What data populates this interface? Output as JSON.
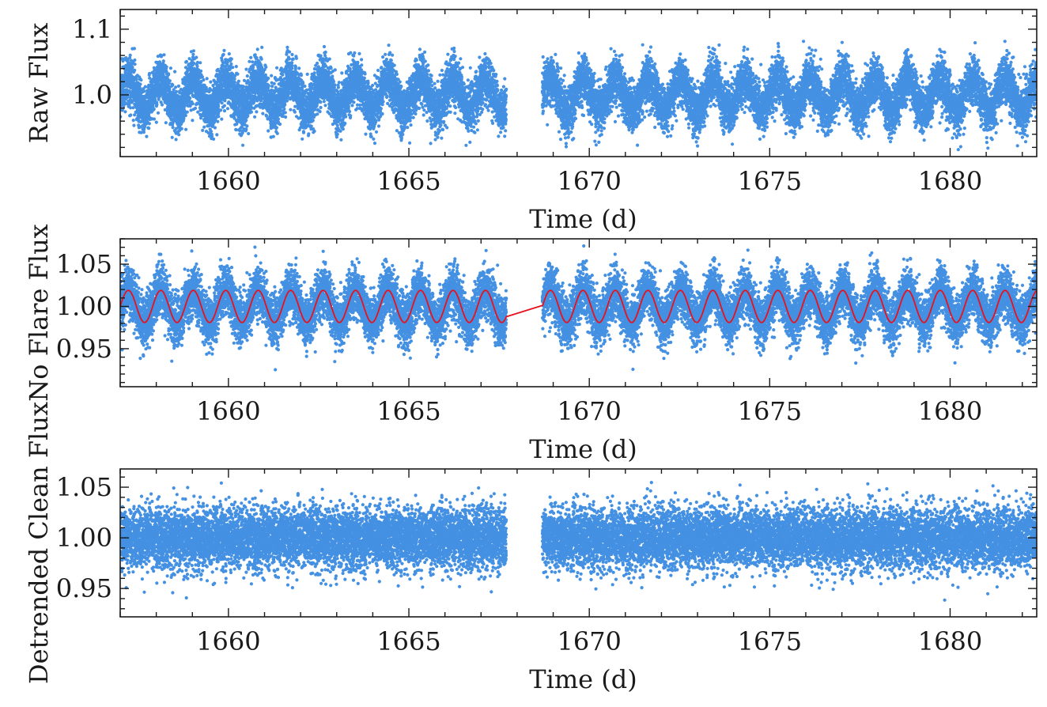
{
  "colors": {
    "points": "#4490e2",
    "model": "#e8121c",
    "axes": "#1a1a1a"
  },
  "chart_data": [
    {
      "type": "scatter",
      "xlabel": "Time (d)",
      "ylabel": "Raw Flux",
      "xlim": [
        1657.0,
        1682.4
      ],
      "ylim": [
        0.906,
        1.13
      ],
      "x_ticks": [
        1660,
        1665,
        1670,
        1675,
        1680
      ],
      "y_ticks": [
        1.0,
        1.1
      ],
      "y_tick_labels": [
        "1.0",
        "1.1"
      ],
      "x_minor_step": 1,
      "y_minor_step": 0.02,
      "series": [
        {
          "kind": "points",
          "segments": [
            [
              1657.0,
              1667.7
            ],
            [
              1668.7,
              1682.4
            ]
          ],
          "cadence": 0.00139,
          "period": 0.9,
          "amplitude": 0.024,
          "scatter_sigma": 0.021,
          "center": 1.0
        }
      ]
    },
    {
      "type": "scatter",
      "xlabel": "Time (d)",
      "ylabel": "No Flare Flux",
      "xlim": [
        1657.0,
        1682.4
      ],
      "ylim": [
        0.905,
        1.08
      ],
      "x_ticks": [
        1660,
        1665,
        1670,
        1675,
        1680
      ],
      "y_ticks": [
        0.95,
        1.0,
        1.05
      ],
      "y_tick_labels": [
        "0.95",
        "1.00",
        "1.05"
      ],
      "x_minor_step": 1,
      "y_minor_step": 0.01,
      "series": [
        {
          "kind": "points",
          "segments": [
            [
              1657.0,
              1667.7
            ],
            [
              1668.7,
              1682.4
            ]
          ],
          "cadence": 0.00139,
          "period": 0.9,
          "amplitude": 0.019,
          "scatter_sigma": 0.017,
          "center": 1.0
        },
        {
          "kind": "model-line",
          "segments": [
            [
              1657.0,
              1667.7
            ],
            [
              1668.7,
              1682.4
            ]
          ],
          "period": 0.9,
          "amplitude": 0.019,
          "center": 1.0
        }
      ]
    },
    {
      "type": "scatter",
      "xlabel": "Time (d)",
      "ylabel": "Detrended Clean Flux",
      "xlim": [
        1657.0,
        1682.4
      ],
      "ylim": [
        0.922,
        1.068
      ],
      "x_ticks": [
        1660,
        1665,
        1670,
        1675,
        1680
      ],
      "y_ticks": [
        0.95,
        1.0,
        1.05
      ],
      "y_tick_labels": [
        "0.95",
        "1.00",
        "1.05"
      ],
      "x_minor_step": 1,
      "y_minor_step": 0.01,
      "series": [
        {
          "kind": "points",
          "segments": [
            [
              1657.0,
              1667.7
            ],
            [
              1668.7,
              1682.4
            ]
          ],
          "cadence": 0.00139,
          "period": 0.9,
          "amplitude": 0.0,
          "scatter_sigma": 0.017,
          "center": 1.0
        }
      ]
    }
  ]
}
